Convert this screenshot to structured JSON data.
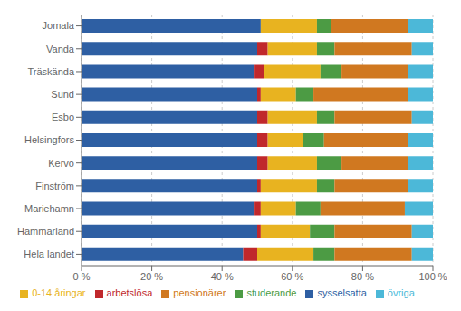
{
  "chart_data": {
    "type": "bar",
    "orientation": "horizontal",
    "stacked": true,
    "categories": [
      "Jomala",
      "Vanda",
      "Träskända",
      "Sund",
      "Esbo",
      "Helsingfors",
      "Kervo",
      "Finström",
      "Mariehamn",
      "Hammarland",
      "Hela landet"
    ],
    "series": [
      {
        "name": "sysselsatta",
        "color": "#2E5FA3",
        "values": [
          51,
          50,
          49,
          50,
          50,
          50,
          50,
          50,
          49,
          50,
          46
        ]
      },
      {
        "name": "arbetslösa",
        "color": "#C0282C",
        "values": [
          0,
          3,
          3,
          1,
          3,
          3,
          3,
          1,
          2,
          1,
          4
        ]
      },
      {
        "name": "0-14 åringar",
        "color": "#E8B320",
        "values": [
          16,
          14,
          16,
          10,
          14,
          10,
          14,
          16,
          10,
          14,
          16
        ]
      },
      {
        "name": "studerande",
        "color": "#4C9B44",
        "values": [
          4,
          5,
          6,
          5,
          5,
          6,
          7,
          5,
          7,
          7,
          6
        ]
      },
      {
        "name": "pensionärer",
        "color": "#D07820",
        "values": [
          22,
          22,
          19,
          27,
          22,
          24,
          19,
          21,
          24,
          22,
          22
        ]
      },
      {
        "name": "övriga",
        "color": "#4CB8D8",
        "values": [
          7,
          6,
          7,
          7,
          6,
          7,
          7,
          7,
          8,
          6,
          6
        ]
      }
    ],
    "xlim": [
      0,
      100
    ],
    "xticks": [
      {
        "value": 0,
        "label": "0 %"
      },
      {
        "value": 20,
        "label": "20 %"
      },
      {
        "value": 40,
        "label": "40 %"
      },
      {
        "value": 60,
        "label": "60 %"
      },
      {
        "value": 80,
        "label": "80 %"
      },
      {
        "value": 100,
        "label": "100 %"
      }
    ],
    "grid": true,
    "legend": "bottom"
  }
}
